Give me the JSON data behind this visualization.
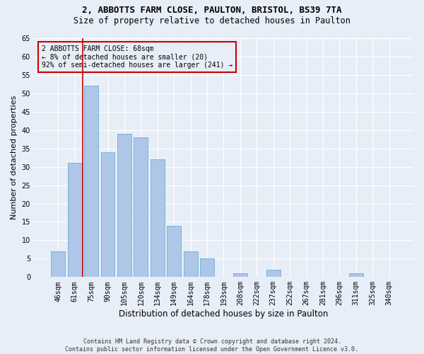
{
  "title1": "2, ABBOTTS FARM CLOSE, PAULTON, BRISTOL, BS39 7TA",
  "title2": "Size of property relative to detached houses in Paulton",
  "xlabel": "Distribution of detached houses by size in Paulton",
  "ylabel": "Number of detached properties",
  "bar_labels": [
    "46sqm",
    "61sqm",
    "75sqm",
    "90sqm",
    "105sqm",
    "120sqm",
    "134sqm",
    "149sqm",
    "164sqm",
    "178sqm",
    "193sqm",
    "208sqm",
    "222sqm",
    "237sqm",
    "252sqm",
    "267sqm",
    "281sqm",
    "296sqm",
    "311sqm",
    "325sqm",
    "340sqm"
  ],
  "bar_values": [
    7,
    31,
    52,
    34,
    39,
    38,
    32,
    14,
    7,
    5,
    0,
    1,
    0,
    2,
    0,
    0,
    0,
    0,
    1,
    0,
    0
  ],
  "bar_color": "#aec6e8",
  "bar_edge_color": "#6baed6",
  "background_color": "#e8eef8",
  "grid_color": "#ffffff",
  "vline_x": 1.5,
  "vline_color": "#cc0000",
  "annotation_text": "2 ABBOTTS FARM CLOSE: 68sqm\n← 8% of detached houses are smaller (20)\n92% of semi-detached houses are larger (241) →",
  "annotation_box_edge": "#cc0000",
  "ylim": [
    0,
    65
  ],
  "yticks": [
    0,
    5,
    10,
    15,
    20,
    25,
    30,
    35,
    40,
    45,
    50,
    55,
    60,
    65
  ],
  "footer": "Contains HM Land Registry data © Crown copyright and database right 2024.\nContains public sector information licensed under the Open Government Licence v3.0.",
  "title1_fontsize": 9,
  "title2_fontsize": 8.5,
  "xlabel_fontsize": 8.5,
  "ylabel_fontsize": 8,
  "tick_fontsize": 7,
  "annotation_fontsize": 7,
  "footer_fontsize": 6
}
